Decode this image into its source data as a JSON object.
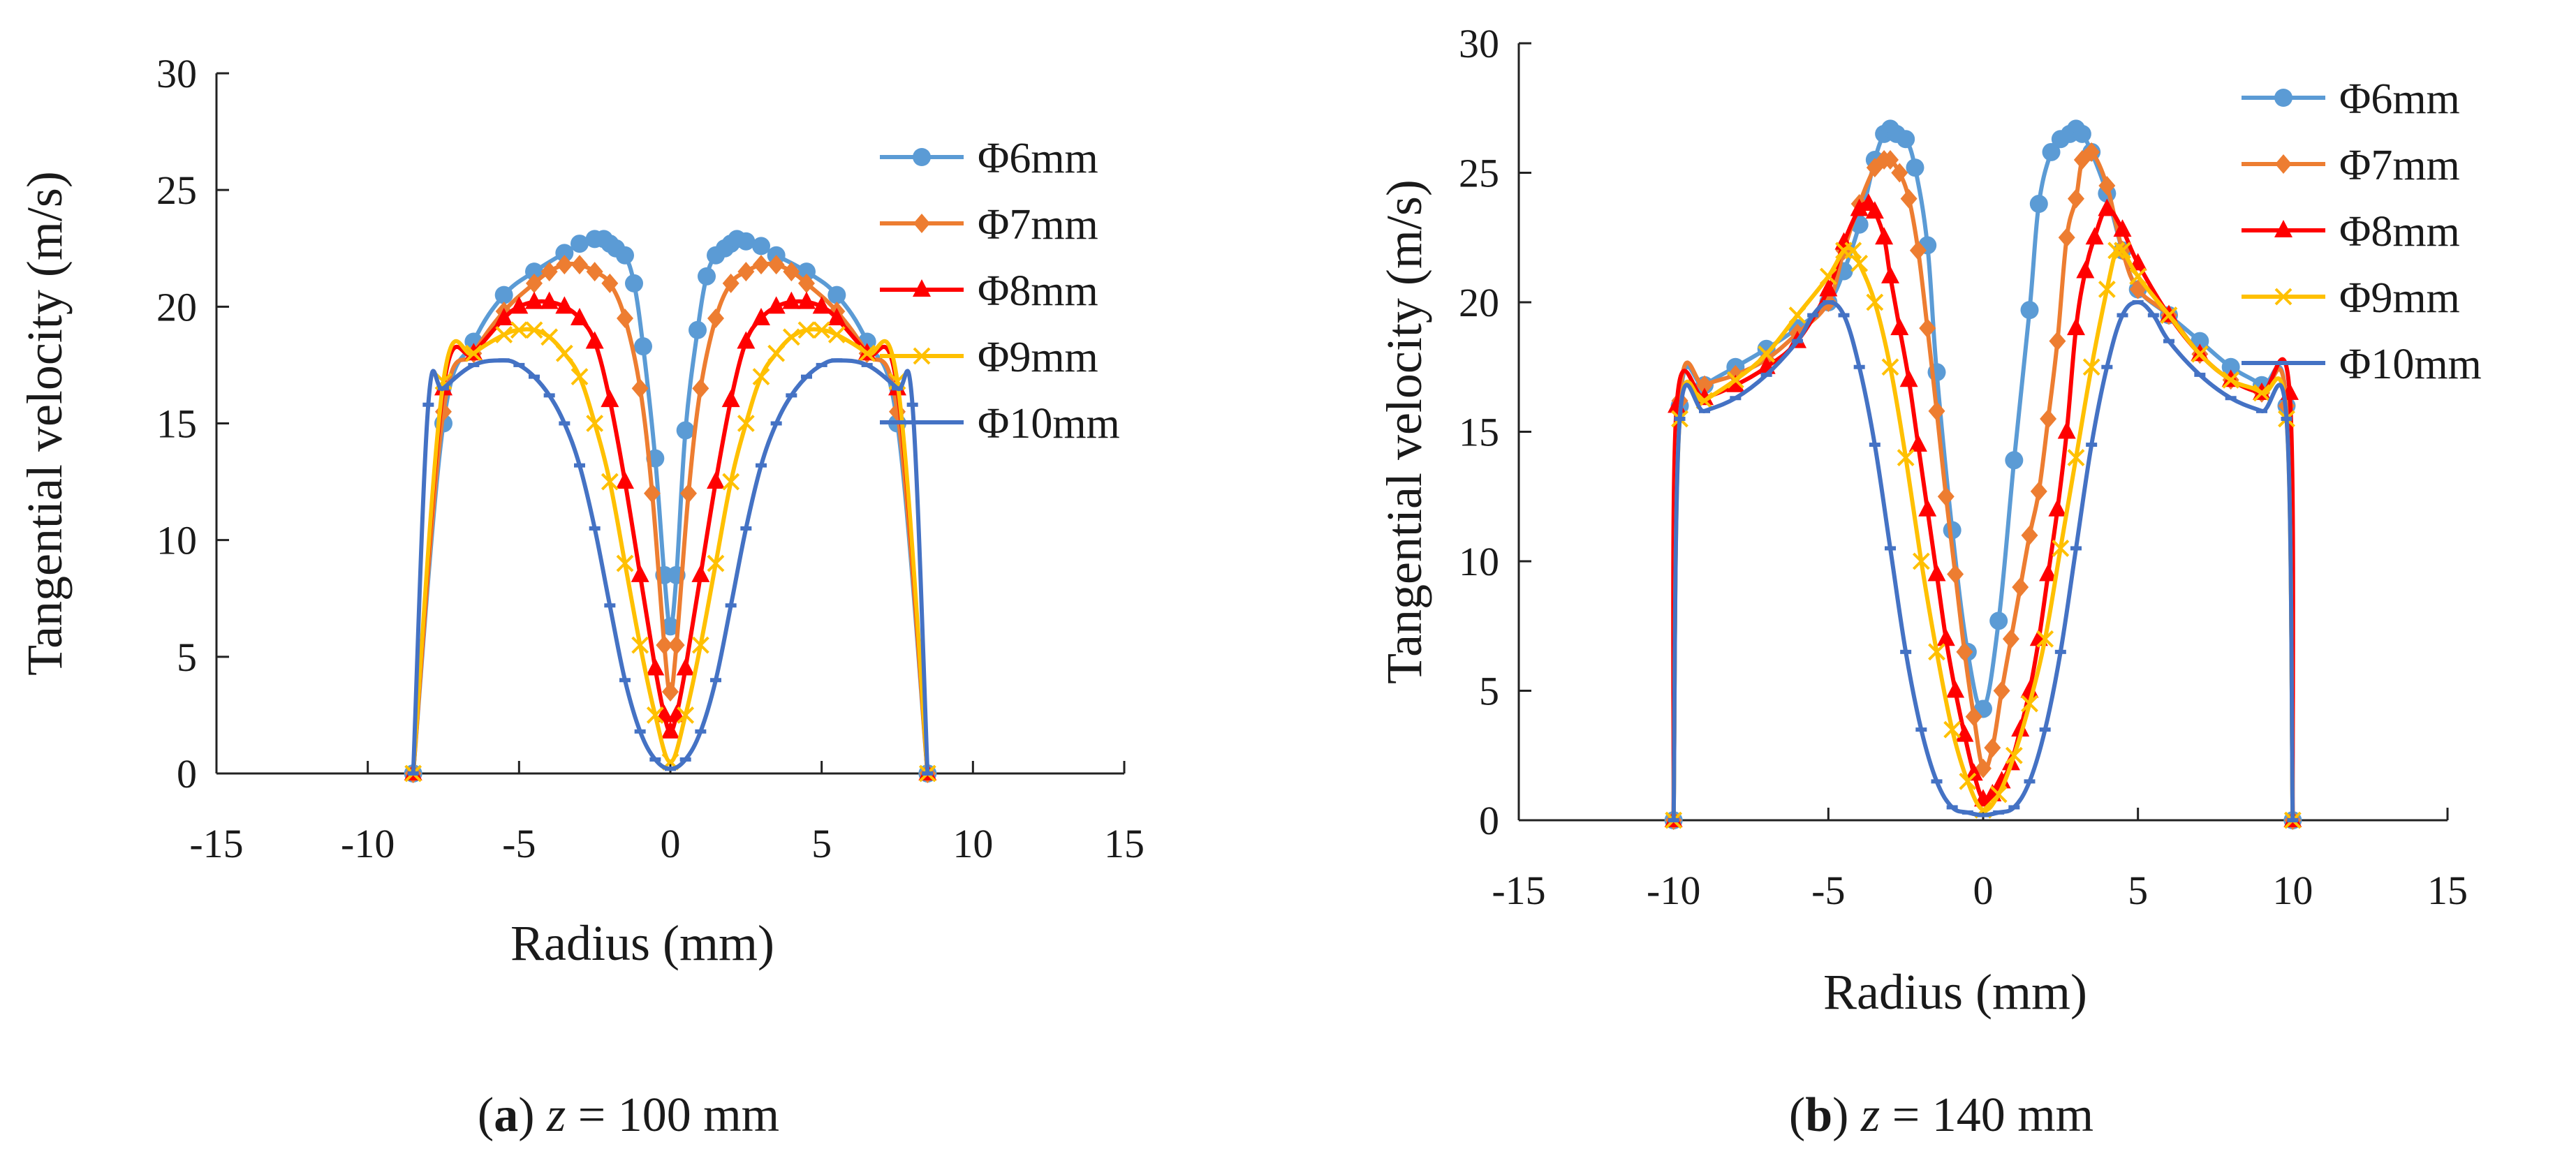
{
  "series_colors": {
    "Φ6mm": "#5B9BD5",
    "Φ7mm": "#ED7D31",
    "Φ8mm": "#FF0000",
    "Φ9mm": "#FFC000",
    "Φ10mm": "#4472C4"
  },
  "chart_data": [
    {
      "type": "line",
      "panel": "a",
      "caption": {
        "label": "a",
        "variable": "z",
        "value": "= 100 mm"
      },
      "xlabel": "Radius (mm)",
      "ylabel": "Tangential velocity (m/s)",
      "xlim": [
        -15,
        15
      ],
      "ylim": [
        0,
        30
      ],
      "xticks": [
        -15,
        -10,
        -5,
        0,
        5,
        10,
        15
      ],
      "yticks": [
        0,
        5,
        10,
        15,
        20,
        25,
        30
      ],
      "legend_position": "top-right",
      "series": [
        {
          "name": "Φ6mm",
          "marker": "circle",
          "x": [
            -8.5,
            -7.5,
            -6.5,
            -5.5,
            -4.5,
            -3.5,
            -3.0,
            -2.5,
            -2.2,
            -2.0,
            -1.8,
            -1.5,
            -1.2,
            -0.9,
            -0.5,
            -0.2,
            0.0,
            0.2,
            0.5,
            0.9,
            1.2,
            1.5,
            1.8,
            2.0,
            2.2,
            2.5,
            3.0,
            3.5,
            4.5,
            5.5,
            6.5,
            7.5,
            8.5
          ],
          "y": [
            0,
            15.0,
            18.5,
            20.5,
            21.5,
            22.3,
            22.7,
            22.9,
            22.9,
            22.7,
            22.5,
            22.2,
            21.0,
            18.3,
            13.5,
            8.5,
            6.3,
            8.5,
            14.7,
            19.0,
            21.3,
            22.2,
            22.5,
            22.7,
            22.9,
            22.8,
            22.6,
            22.2,
            21.5,
            20.5,
            18.5,
            15.0,
            0
          ]
        },
        {
          "name": "Φ7mm",
          "marker": "diamond",
          "x": [
            -8.5,
            -7.5,
            -6.5,
            -5.5,
            -4.5,
            -4.0,
            -3.5,
            -3.0,
            -2.5,
            -2.0,
            -1.5,
            -1.0,
            -0.6,
            -0.2,
            0.0,
            0.2,
            0.6,
            1.0,
            1.5,
            2.0,
            2.5,
            3.0,
            3.5,
            4.0,
            4.5,
            5.5,
            6.5,
            7.5,
            8.5
          ],
          "y": [
            0,
            15.5,
            18.0,
            19.8,
            21.0,
            21.5,
            21.8,
            21.8,
            21.5,
            21.0,
            19.5,
            16.5,
            12.0,
            5.5,
            3.5,
            5.5,
            12.0,
            16.5,
            19.5,
            21.0,
            21.5,
            21.8,
            21.8,
            21.5,
            21.0,
            19.8,
            18.0,
            15.5,
            0
          ]
        },
        {
          "name": "Φ8mm",
          "marker": "triangle",
          "x": [
            -8.5,
            -7.5,
            -6.5,
            -5.5,
            -5.0,
            -4.5,
            -4.0,
            -3.5,
            -3.0,
            -2.5,
            -2.0,
            -1.5,
            -1.0,
            -0.5,
            -0.2,
            0.0,
            0.2,
            0.5,
            1.0,
            1.5,
            2.0,
            2.5,
            3.0,
            3.5,
            4.0,
            4.5,
            5.0,
            5.5,
            6.5,
            7.5,
            8.5
          ],
          "y": [
            0,
            16.5,
            18.0,
            19.5,
            20.0,
            20.2,
            20.2,
            20.0,
            19.5,
            18.5,
            16.0,
            12.5,
            8.5,
            4.5,
            2.5,
            1.8,
            2.5,
            4.5,
            8.5,
            12.5,
            16.0,
            18.5,
            19.5,
            20.0,
            20.2,
            20.2,
            20.0,
            19.5,
            18.0,
            16.5,
            0
          ]
        },
        {
          "name": "Φ9mm",
          "marker": "x",
          "x": [
            -8.5,
            -7.5,
            -6.5,
            -5.5,
            -5.0,
            -4.5,
            -4.0,
            -3.5,
            -3.0,
            -2.5,
            -2.0,
            -1.5,
            -1.0,
            -0.5,
            0.0,
            0.5,
            1.0,
            1.5,
            2.0,
            2.5,
            3.0,
            3.5,
            4.0,
            4.5,
            5.0,
            5.5,
            6.5,
            7.5,
            8.5
          ],
          "y": [
            0,
            16.8,
            18.0,
            18.8,
            19.0,
            19.0,
            18.7,
            18.0,
            17.0,
            15.0,
            12.5,
            9.0,
            5.5,
            2.5,
            0.5,
            2.5,
            5.5,
            9.0,
            12.5,
            15.0,
            17.0,
            18.0,
            18.7,
            19.0,
            19.0,
            18.8,
            18.0,
            16.8,
            0
          ]
        },
        {
          "name": "Φ10mm",
          "marker": "dash",
          "x": [
            -8.5,
            -8.0,
            -7.5,
            -6.5,
            -5.5,
            -5.0,
            -4.5,
            -4.0,
            -3.5,
            -3.0,
            -2.5,
            -2.0,
            -1.5,
            -1.0,
            -0.5,
            0.0,
            0.5,
            1.0,
            1.5,
            2.0,
            2.5,
            3.0,
            3.5,
            4.0,
            4.5,
            5.0,
            5.5,
            6.5,
            7.5,
            8.0,
            8.5
          ],
          "y": [
            0,
            15.8,
            16.5,
            17.5,
            17.7,
            17.5,
            17.0,
            16.2,
            15.0,
            13.2,
            10.5,
            7.2,
            4.0,
            1.8,
            0.6,
            0.2,
            0.6,
            1.8,
            4.0,
            7.2,
            10.5,
            13.2,
            15.0,
            16.2,
            17.0,
            17.5,
            17.7,
            17.5,
            16.5,
            15.8,
            0
          ]
        }
      ]
    },
    {
      "type": "line",
      "panel": "b",
      "caption": {
        "label": "b",
        "variable": "z",
        "value": "= 140 mm"
      },
      "xlabel": "Radius (mm)",
      "ylabel": "Tangential velocity (m/s)",
      "xlim": [
        -15,
        15
      ],
      "ylim": [
        0,
        30
      ],
      "xticks": [
        -15,
        -10,
        -5,
        0,
        5,
        10,
        15
      ],
      "yticks": [
        0,
        5,
        10,
        15,
        20,
        25,
        30
      ],
      "legend_position": "top-right",
      "series": [
        {
          "name": "Φ6mm",
          "marker": "circle",
          "x": [
            -10.0,
            -9.8,
            -9.0,
            -8.0,
            -7.0,
            -6.0,
            -5.0,
            -4.5,
            -4.0,
            -3.5,
            -3.2,
            -3.0,
            -2.8,
            -2.5,
            -2.2,
            -1.8,
            -1.5,
            -1.0,
            -0.5,
            0.0,
            0.5,
            1.0,
            1.5,
            1.8,
            2.2,
            2.5,
            2.8,
            3.0,
            3.2,
            3.5,
            4.0,
            4.5,
            5.0,
            6.0,
            7.0,
            8.0,
            9.0,
            9.8,
            10.0
          ],
          "y": [
            0,
            16.0,
            16.8,
            17.5,
            18.2,
            19.0,
            20.0,
            21.2,
            23.0,
            25.5,
            26.5,
            26.7,
            26.5,
            26.3,
            25.2,
            22.2,
            17.3,
            11.2,
            6.5,
            4.3,
            7.7,
            13.9,
            19.7,
            23.8,
            25.8,
            26.3,
            26.5,
            26.7,
            26.5,
            25.8,
            24.2,
            22.0,
            20.5,
            19.5,
            18.5,
            17.5,
            16.8,
            16.0,
            0
          ]
        },
        {
          "name": "Φ7mm",
          "marker": "diamond",
          "x": [
            -10.0,
            -9.8,
            -9.0,
            -8.0,
            -7.0,
            -6.0,
            -5.0,
            -4.5,
            -4.0,
            -3.5,
            -3.2,
            -3.0,
            -2.7,
            -2.4,
            -2.1,
            -1.8,
            -1.5,
            -1.2,
            -0.9,
            -0.6,
            -0.3,
            0.0,
            0.3,
            0.6,
            0.9,
            1.2,
            1.5,
            1.8,
            2.1,
            2.4,
            2.7,
            3.0,
            3.2,
            3.5,
            4.0,
            4.5,
            5.0,
            6.0,
            7.0,
            8.0,
            9.0,
            9.8,
            10.0
          ],
          "y": [
            0,
            16.2,
            16.8,
            17.2,
            17.8,
            18.8,
            20.0,
            22.0,
            23.8,
            25.2,
            25.5,
            25.5,
            25.0,
            24.0,
            22.0,
            19.0,
            15.8,
            12.5,
            9.5,
            6.5,
            4.0,
            2.0,
            2.8,
            5.0,
            7.0,
            9.0,
            11.0,
            12.7,
            15.5,
            18.5,
            22.5,
            24.0,
            25.5,
            25.8,
            24.5,
            22.0,
            20.5,
            19.5,
            18.0,
            17.0,
            16.5,
            16.0,
            0
          ]
        },
        {
          "name": "Φ8mm",
          "marker": "triangle",
          "x": [
            -10.0,
            -9.9,
            -9.0,
            -8.0,
            -7.0,
            -6.0,
            -5.0,
            -4.5,
            -4.0,
            -3.7,
            -3.5,
            -3.2,
            -3.0,
            -2.7,
            -2.4,
            -2.1,
            -1.8,
            -1.5,
            -1.2,
            -0.9,
            -0.6,
            -0.3,
            0.0,
            0.3,
            0.6,
            0.9,
            1.2,
            1.5,
            1.8,
            2.1,
            2.4,
            2.7,
            3.0,
            3.3,
            3.6,
            4.0,
            4.5,
            5.0,
            6.0,
            7.0,
            8.0,
            9.0,
            9.9,
            10.0
          ],
          "y": [
            0,
            16.0,
            16.3,
            16.8,
            17.5,
            18.5,
            20.5,
            22.3,
            23.6,
            23.8,
            23.5,
            22.5,
            21.0,
            19.0,
            17.0,
            14.5,
            12.0,
            9.5,
            7.0,
            5.0,
            3.3,
            1.8,
            0.8,
            1.0,
            1.5,
            2.2,
            3.5,
            5.0,
            7.0,
            9.5,
            12.0,
            15.0,
            19.0,
            21.2,
            22.5,
            23.6,
            22.8,
            21.5,
            19.5,
            18.0,
            17.0,
            16.5,
            16.5,
            0
          ]
        },
        {
          "name": "Φ9mm",
          "marker": "x",
          "x": [
            -10.0,
            -9.8,
            -9.0,
            -8.0,
            -7.0,
            -6.0,
            -5.0,
            -4.5,
            -4.2,
            -4.0,
            -3.5,
            -3.0,
            -2.5,
            -2.0,
            -1.5,
            -1.0,
            -0.5,
            0.0,
            0.5,
            1.0,
            1.5,
            2.0,
            2.5,
            3.0,
            3.5,
            4.0,
            4.3,
            4.5,
            5.0,
            6.0,
            7.0,
            8.0,
            9.0,
            9.8,
            10.0
          ],
          "y": [
            0,
            15.5,
            16.2,
            17.0,
            18.0,
            19.5,
            21.0,
            22.0,
            22.0,
            21.5,
            20.0,
            17.5,
            14.0,
            10.0,
            6.5,
            3.5,
            1.5,
            0.4,
            1.0,
            2.5,
            4.5,
            7.0,
            10.5,
            14.0,
            17.5,
            20.5,
            22.0,
            22.0,
            21.0,
            19.5,
            18.0,
            17.0,
            16.5,
            15.5,
            0
          ]
        },
        {
          "name": "Φ10mm",
          "marker": "dash",
          "x": [
            -10.0,
            -9.8,
            -9.0,
            -8.0,
            -7.0,
            -6.0,
            -5.5,
            -5.0,
            -4.5,
            -4.0,
            -3.5,
            -3.0,
            -2.5,
            -2.0,
            -1.5,
            -1.0,
            -0.5,
            0.0,
            0.5,
            1.0,
            1.5,
            2.0,
            2.5,
            3.0,
            3.5,
            4.0,
            4.5,
            5.0,
            5.5,
            6.0,
            7.0,
            8.0,
            9.0,
            9.8,
            10.0
          ],
          "y": [
            0,
            15.5,
            15.8,
            16.3,
            17.2,
            18.5,
            19.5,
            20.0,
            19.5,
            17.5,
            14.5,
            10.5,
            6.5,
            3.5,
            1.5,
            0.5,
            0.3,
            0.2,
            0.3,
            0.5,
            1.5,
            3.5,
            6.5,
            10.5,
            14.5,
            17.5,
            19.5,
            20.0,
            19.5,
            18.5,
            17.2,
            16.3,
            15.8,
            15.5,
            0
          ]
        }
      ]
    }
  ]
}
